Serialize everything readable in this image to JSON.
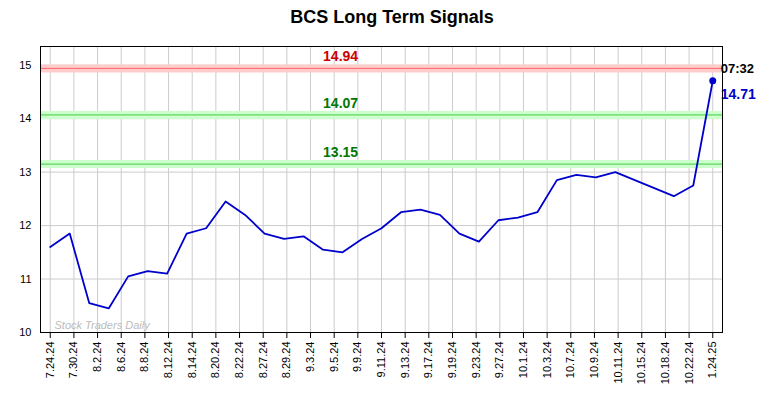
{
  "chart_data": {
    "type": "line",
    "title": "BCS Long Term Signals",
    "x": [
      0,
      1,
      2,
      3,
      4,
      5,
      6,
      7,
      8,
      9,
      10,
      11,
      12,
      13,
      14,
      15,
      16,
      17,
      18,
      19,
      20,
      21,
      22,
      23,
      24,
      25,
      26,
      27,
      28,
      29,
      30,
      31,
      32,
      33,
      34
    ],
    "values": [
      11.6,
      11.85,
      10.55,
      10.45,
      11.05,
      11.15,
      11.1,
      11.85,
      11.95,
      12.45,
      12.2,
      11.85,
      11.75,
      11.8,
      11.55,
      11.5,
      11.75,
      11.95,
      12.25,
      12.3,
      12.2,
      11.85,
      11.7,
      12.1,
      12.15,
      12.25,
      12.85,
      12.95,
      12.9,
      13.0,
      12.85,
      12.7,
      12.55,
      12.75,
      14.71
    ],
    "color": "#0000cc",
    "xlim": [
      -0.5,
      34.5
    ],
    "xticks": [
      {
        "value": 0,
        "label": "7.24.24"
      },
      {
        "value": 1.2142857142857142,
        "label": "7.30.24"
      },
      {
        "value": 2.4285714285714284,
        "label": "8.2.24"
      },
      {
        "value": 3.642857142857143,
        "label": "8.6.24"
      },
      {
        "value": 4.857142857142857,
        "label": "8.8.24"
      },
      {
        "value": 6.071428571428571,
        "label": "8.12.24"
      },
      {
        "value": 7.285714285714286,
        "label": "8.14.24"
      },
      {
        "value": 8.5,
        "label": "8.20.24"
      },
      {
        "value": 9.714285714285714,
        "label": "8.22.24"
      },
      {
        "value": 10.928571428571429,
        "label": "8.27.24"
      },
      {
        "value": 12.142857142857142,
        "label": "8.29.24"
      },
      {
        "value": 13.357142857142858,
        "label": "9.3.24"
      },
      {
        "value": 14.571428571428571,
        "label": "9.5.24"
      },
      {
        "value": 15.785714285714286,
        "label": "9.9.24"
      },
      {
        "value": 17,
        "label": "9.11.24"
      },
      {
        "value": 18.214285714285715,
        "label": "9.13.24"
      },
      {
        "value": 19.428571428571427,
        "label": "9.17.24"
      },
      {
        "value": 20.642857142857142,
        "label": "9.19.24"
      },
      {
        "value": 21.857142857142858,
        "label": "9.23.24"
      },
      {
        "value": 23.071428571428573,
        "label": "9.27.24"
      },
      {
        "value": 24.285714285714285,
        "label": "10.1.24"
      },
      {
        "value": 25.5,
        "label": "10.3.24"
      },
      {
        "value": 26.714285714285715,
        "label": "10.7.24"
      },
      {
        "value": 27.928571428571427,
        "label": "10.9.24"
      },
      {
        "value": 29.142857142857142,
        "label": "10.11.24"
      },
      {
        "value": 30.357142857142858,
        "label": "10.15.24"
      },
      {
        "value": 31.571428571428573,
        "label": "10.18.24"
      },
      {
        "value": 32.785714285714285,
        "label": "10.22.24"
      },
      {
        "value": 34,
        "label": "1.24.25"
      }
    ],
    "ylim": [
      10.0,
      15.35
    ],
    "yticks": [
      10,
      11,
      12,
      13,
      14,
      15
    ],
    "grid": true,
    "reference_lines": [
      {
        "value": 14.94,
        "label": "14.94",
        "color": "#ff6666",
        "fill_color": "#ffcccc",
        "label_color": "#cc0000"
      },
      {
        "value": 14.07,
        "label": "14.07",
        "color": "#44cc44",
        "fill_color": "#ccffcc",
        "label_color": "#007700"
      },
      {
        "value": 13.15,
        "label": "13.15",
        "color": "#44cc44",
        "fill_color": "#ccffcc",
        "label_color": "#007700"
      }
    ],
    "last_point": {
      "time_label": "07:32",
      "value_label": "14.71",
      "color": "#0000cc"
    },
    "watermark": "Stock Traders Daily"
  }
}
